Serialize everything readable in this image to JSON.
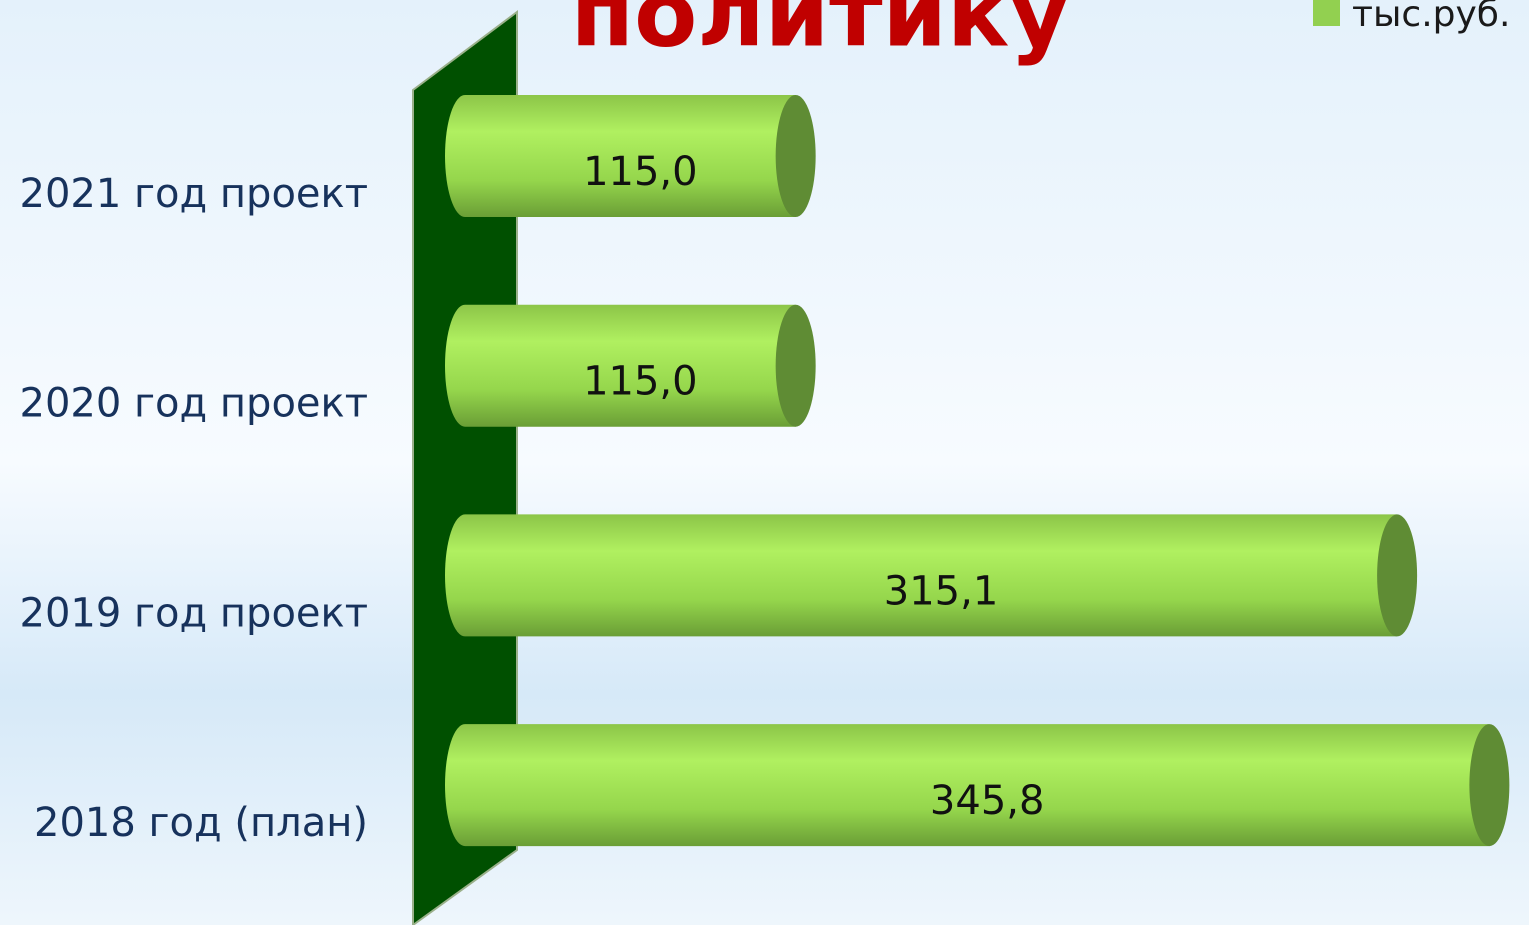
{
  "chart_data": {
    "type": "bar",
    "orientation": "horizontal",
    "title": "политику",
    "legend_label": "тыс.руб.",
    "categories": [
      "2021 год проект",
      "2020 год проект",
      "2019 год проект",
      "2018 год (план)"
    ],
    "values": [
      115.0,
      115.0,
      315.1,
      345.8
    ],
    "value_labels": [
      "115,0",
      "115,0",
      "315,1",
      "345,8"
    ],
    "color": "#92d050",
    "xlim": [
      0,
      350
    ]
  }
}
